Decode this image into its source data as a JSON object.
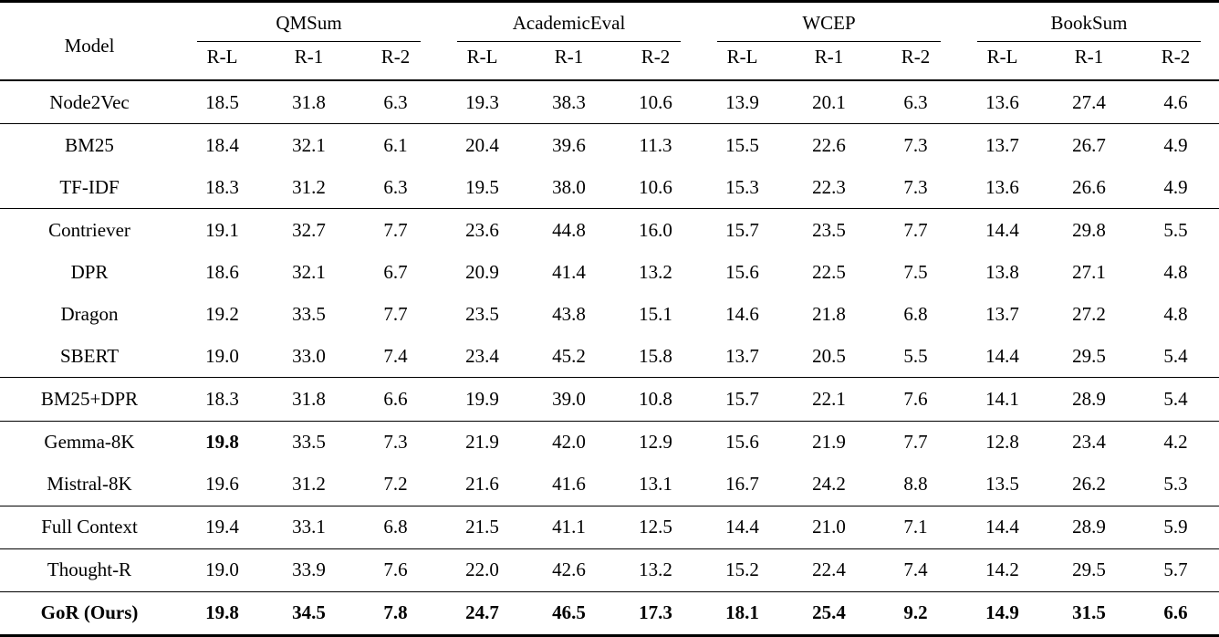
{
  "page": {
    "background_color": "#ffffff",
    "text_color": "#000000"
  },
  "table": {
    "model_header": "Model",
    "groups": [
      {
        "label": "QMSum",
        "metrics": [
          "R-L",
          "R-1",
          "R-2"
        ]
      },
      {
        "label": "AcademicEval",
        "metrics": [
          "R-L",
          "R-1",
          "R-2"
        ]
      },
      {
        "label": "WCEP",
        "metrics": [
          "R-L",
          "R-1",
          "R-2"
        ]
      },
      {
        "label": "BookSum",
        "metrics": [
          "R-L",
          "R-1",
          "R-2"
        ]
      }
    ],
    "sections": [
      {
        "rows": [
          {
            "model": "Node2Vec",
            "values": [
              "18.5",
              "31.8",
              "6.3",
              "19.3",
              "38.3",
              "10.6",
              "13.9",
              "20.1",
              "6.3",
              "13.6",
              "27.4",
              "4.6"
            ]
          }
        ]
      },
      {
        "rows": [
          {
            "model": "BM25",
            "values": [
              "18.4",
              "32.1",
              "6.1",
              "20.4",
              "39.6",
              "11.3",
              "15.5",
              "22.6",
              "7.3",
              "13.7",
              "26.7",
              "4.9"
            ]
          },
          {
            "model": "TF-IDF",
            "values": [
              "18.3",
              "31.2",
              "6.3",
              "19.5",
              "38.0",
              "10.6",
              "15.3",
              "22.3",
              "7.3",
              "13.6",
              "26.6",
              "4.9"
            ]
          }
        ]
      },
      {
        "rows": [
          {
            "model": "Contriever",
            "values": [
              "19.1",
              "32.7",
              "7.7",
              "23.6",
              "44.8",
              "16.0",
              "15.7",
              "23.5",
              "7.7",
              "14.4",
              "29.8",
              "5.5"
            ]
          },
          {
            "model": "DPR",
            "values": [
              "18.6",
              "32.1",
              "6.7",
              "20.9",
              "41.4",
              "13.2",
              "15.6",
              "22.5",
              "7.5",
              "13.8",
              "27.1",
              "4.8"
            ]
          },
          {
            "model": "Dragon",
            "values": [
              "19.2",
              "33.5",
              "7.7",
              "23.5",
              "43.8",
              "15.1",
              "14.6",
              "21.8",
              "6.8",
              "13.7",
              "27.2",
              "4.8"
            ]
          },
          {
            "model": "SBERT",
            "values": [
              "19.0",
              "33.0",
              "7.4",
              "23.4",
              "45.2",
              "15.8",
              "13.7",
              "20.5",
              "5.5",
              "14.4",
              "29.5",
              "5.4"
            ]
          }
        ]
      },
      {
        "rows": [
          {
            "model": "BM25+DPR",
            "values": [
              "18.3",
              "31.8",
              "6.6",
              "19.9",
              "39.0",
              "10.8",
              "15.7",
              "22.1",
              "7.6",
              "14.1",
              "28.9",
              "5.4"
            ]
          }
        ]
      },
      {
        "rows": [
          {
            "model": "Gemma-8K",
            "values": [
              "19.8",
              "33.5",
              "7.3",
              "21.9",
              "42.0",
              "12.9",
              "15.6",
              "21.9",
              "7.7",
              "12.8",
              "23.4",
              "4.2"
            ],
            "bold_value_indexes": [
              0
            ]
          },
          {
            "model": "Mistral-8K",
            "values": [
              "19.6",
              "31.2",
              "7.2",
              "21.6",
              "41.6",
              "13.1",
              "16.7",
              "24.2",
              "8.8",
              "13.5",
              "26.2",
              "5.3"
            ]
          }
        ]
      },
      {
        "rows": [
          {
            "model": "Full Context",
            "values": [
              "19.4",
              "33.1",
              "6.8",
              "21.5",
              "41.1",
              "12.5",
              "14.4",
              "21.0",
              "7.1",
              "14.4",
              "28.9",
              "5.9"
            ]
          }
        ]
      },
      {
        "rows": [
          {
            "model": "Thought-R",
            "values": [
              "19.0",
              "33.9",
              "7.6",
              "22.0",
              "42.6",
              "13.2",
              "15.2",
              "22.4",
              "7.4",
              "14.2",
              "29.5",
              "5.7"
            ]
          }
        ]
      },
      {
        "rows": [
          {
            "model": "GoR (Ours)",
            "values": [
              "19.8",
              "34.5",
              "7.8",
              "24.7",
              "46.5",
              "17.3",
              "18.1",
              "25.4",
              "9.2",
              "14.9",
              "31.5",
              "6.6"
            ],
            "bold": true
          }
        ]
      }
    ]
  }
}
